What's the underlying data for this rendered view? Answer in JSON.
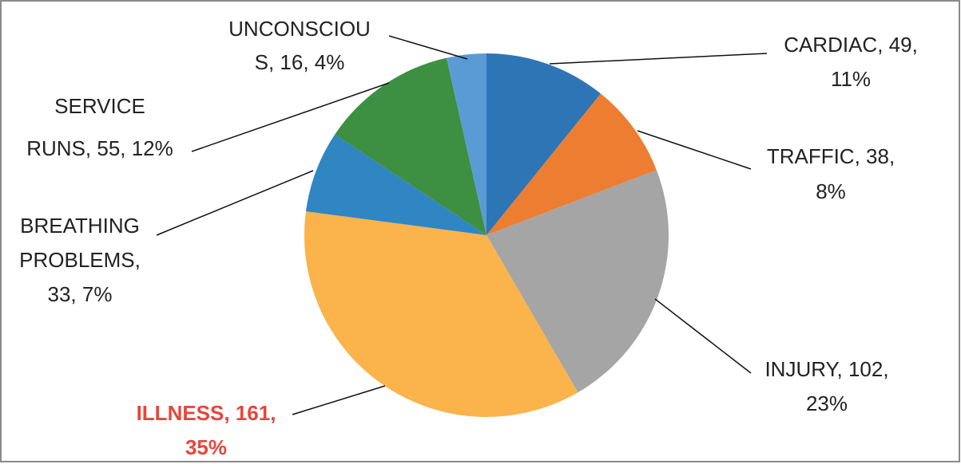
{
  "chart_data": {
    "type": "pie",
    "values": [
      49,
      38,
      102,
      161,
      33,
      55,
      16
    ],
    "value_labels": [
      [
        "CARDIAC, 49,",
        "11%"
      ],
      [
        "TRAFFIC, 38,",
        "8%"
      ],
      [
        "INJURY, 102,",
        "23%"
      ],
      [
        "ILLNESS, 161,",
        "35%"
      ],
      [
        "BREATHING",
        "PROBLEMS,",
        "33, 7%"
      ],
      [
        "SERVICE",
        "RUNS, 55, 12%"
      ],
      [
        "UNCONSCIOU",
        "S, 16, 4%"
      ]
    ],
    "colors": [
      "#2e75b6",
      "#ed7d31",
      "#a5a5a5",
      "#fbb34c",
      "#2f86c2",
      "#3d8f42",
      "#5b9bd5"
    ],
    "label_colors": [
      "#222222",
      "#222222",
      "#222222",
      "#e8453c",
      "#222222",
      "#222222",
      "#222222"
    ]
  }
}
